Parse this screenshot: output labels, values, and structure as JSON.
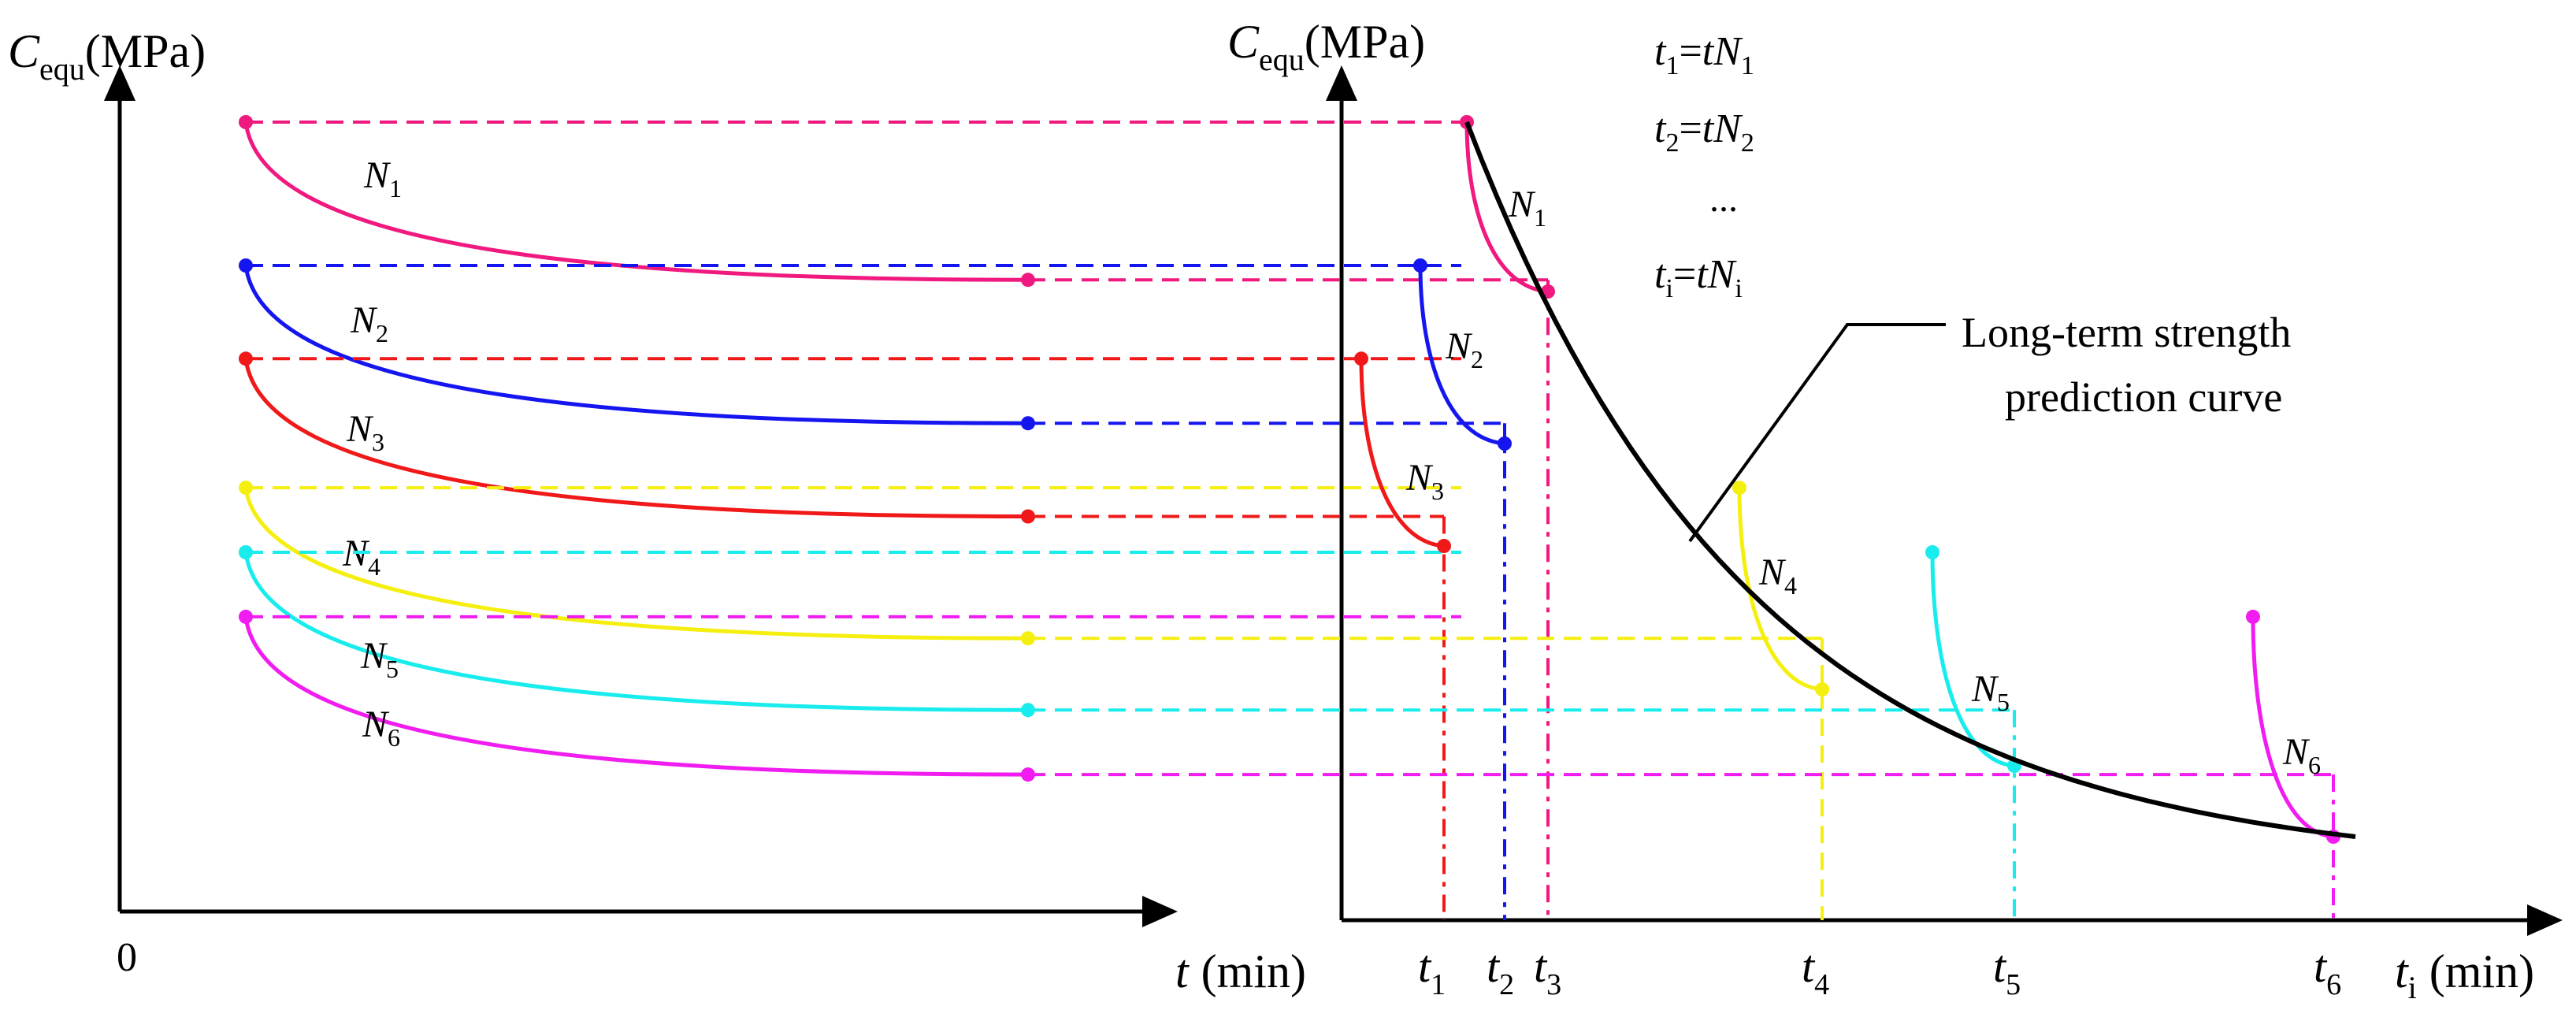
{
  "colors": {
    "N1": "#f0197f",
    "N2": "#1515f0",
    "N3": "#f01818",
    "N4": "#f5ef10",
    "N5": "#18ecec",
    "N6": "#f01cf0",
    "axis": "#000000",
    "long_term_curve": "#000000"
  },
  "chart_data": {
    "type": "diagram",
    "left_panel": {
      "ylabel_main": "C",
      "ylabel_sub": "equ",
      "ylabel_unit": "(MPa)",
      "xlabel_main": "t",
      "xlabel_unit": "(min)",
      "origin_label": "0",
      "curves": [
        {
          "id": "N1",
          "label_main": "N",
          "label_sub": "1",
          "start": 1.0,
          "end": 0.78
        },
        {
          "id": "N2",
          "label_main": "N",
          "label_sub": "2",
          "start": 0.8,
          "end": 0.58
        },
        {
          "id": "N3",
          "label_main": "N",
          "label_sub": "3",
          "start": 0.67,
          "end": 0.45
        },
        {
          "id": "N4",
          "label_main": "N",
          "label_sub": "4",
          "start": 0.49,
          "end": 0.28
        },
        {
          "id": "N5",
          "label_main": "N",
          "label_sub": "5",
          "start": 0.4,
          "end": 0.18
        },
        {
          "id": "N6",
          "label_main": "N",
          "label_sub": "6",
          "start": 0.31,
          "end": 0.09
        }
      ]
    },
    "right_panel": {
      "ylabel_main": "C",
      "ylabel_sub": "equ",
      "ylabel_unit": "(MPa)",
      "xlabel_main": "t",
      "xlabel_sub": "i",
      "xlabel_unit": "(min)",
      "formulas": [
        {
          "lhs": "t",
          "lhs_sub": "1",
          "rhs": "tN",
          "rhs_sub": "1"
        },
        {
          "lhs": "t",
          "lhs_sub": "2",
          "rhs": "tN",
          "rhs_sub": "2"
        },
        {
          "ellipsis": "..."
        },
        {
          "lhs": "t",
          "lhs_sub": "i",
          "rhs": "tN",
          "rhs_sub": "i"
        }
      ],
      "time_ticks": [
        {
          "main": "t",
          "sub": "1"
        },
        {
          "main": "t",
          "sub": "2"
        },
        {
          "main": "t",
          "sub": "3"
        },
        {
          "main": "t",
          "sub": "4"
        },
        {
          "main": "t",
          "sub": "5"
        },
        {
          "main": "t",
          "sub": "6"
        }
      ],
      "curve_labels": [
        {
          "id": "N1",
          "main": "N",
          "sub": "1"
        },
        {
          "id": "N2",
          "main": "N",
          "sub": "2"
        },
        {
          "id": "N3",
          "main": "N",
          "sub": "3"
        },
        {
          "id": "N4",
          "main": "N",
          "sub": "4"
        },
        {
          "id": "N5",
          "main": "N",
          "sub": "5"
        },
        {
          "id": "N6",
          "main": "N",
          "sub": "6"
        }
      ],
      "callout_line1": "Long-term strength",
      "callout_line2": "prediction curve"
    }
  }
}
